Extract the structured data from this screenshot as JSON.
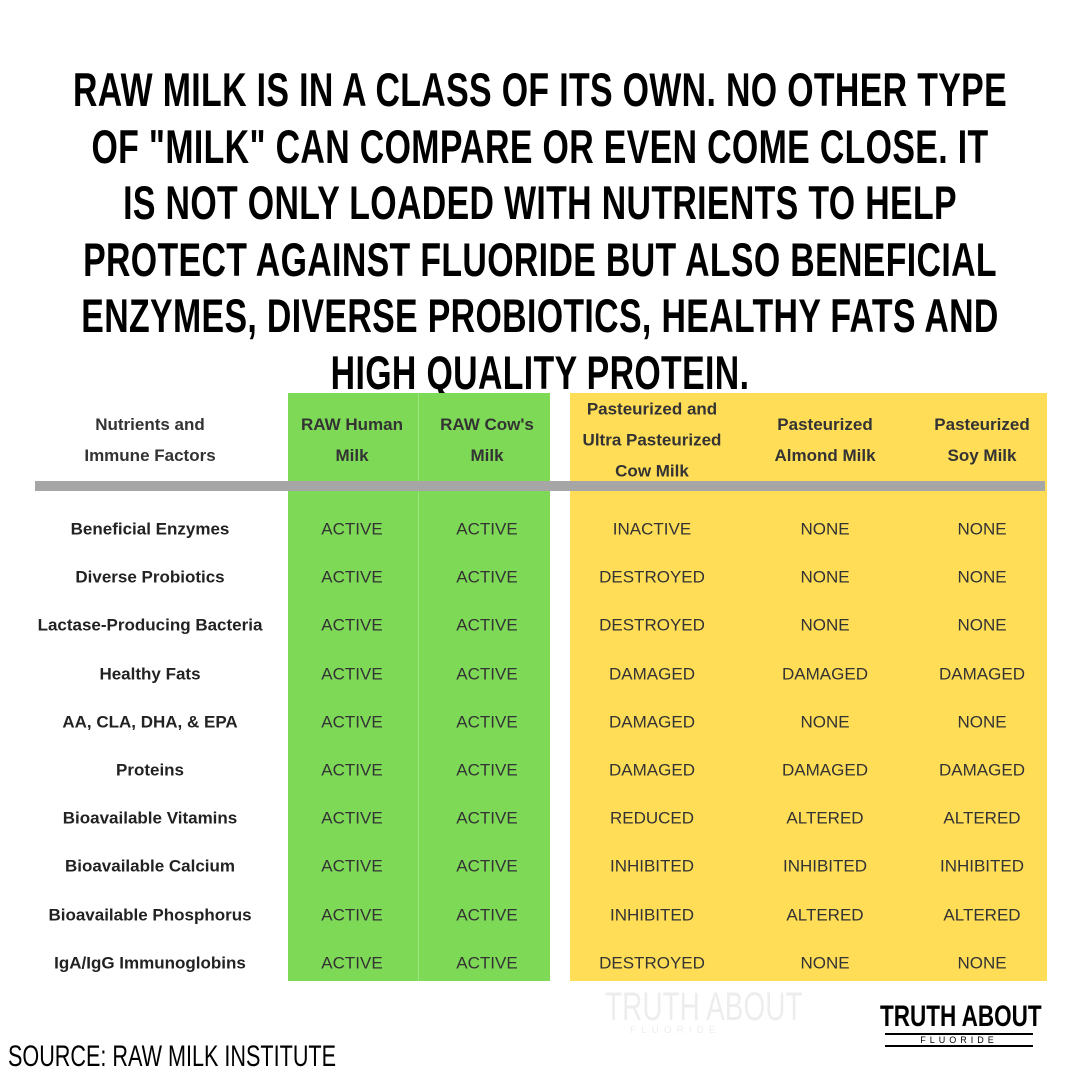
{
  "header": {
    "title": "RAW MILK IS IN A CLASS OF ITS OWN. NO OTHER TYPE OF \"MILK\" CAN COMPARE OR EVEN COME CLOSE. IT IS NOT ONLY LOADED WITH NUTRIENTS TO HELP PROTECT AGAINST FLUORIDE BUT ALSO BENEFICIAL ENZYMES, DIVERSE PROBIOTICS, HEALTHY FATS AND HIGH QUALITY PROTEIN."
  },
  "table": {
    "columns": [
      "Nutrients and Immune Factors",
      "RAW Human Milk",
      "RAW Cow's Milk",
      "Pasteurized and Ultra Pasteurized Cow Milk",
      "Pasteurized Almond Milk",
      "Pasteurized Soy Milk"
    ],
    "rows": [
      [
        "Beneficial Enzymes",
        "ACTIVE",
        "ACTIVE",
        "INACTIVE",
        "NONE",
        "NONE"
      ],
      [
        "Diverse Probiotics",
        "ACTIVE",
        "ACTIVE",
        "DESTROYED",
        "NONE",
        "NONE"
      ],
      [
        "Lactase-Producing Bacteria",
        "ACTIVE",
        "ACTIVE",
        "DESTROYED",
        "NONE",
        "NONE"
      ],
      [
        "Healthy Fats",
        "ACTIVE",
        "ACTIVE",
        "DAMAGED",
        "DAMAGED",
        "DAMAGED"
      ],
      [
        "AA, CLA, DHA, & EPA",
        "ACTIVE",
        "ACTIVE",
        "DAMAGED",
        "NONE",
        "NONE"
      ],
      [
        "Proteins",
        "ACTIVE",
        "ACTIVE",
        "DAMAGED",
        "DAMAGED",
        "DAMAGED"
      ],
      [
        "Bioavailable Vitamins",
        "ACTIVE",
        "ACTIVE",
        "REDUCED",
        "ALTERED",
        "ALTERED"
      ],
      [
        "Bioavailable Calcium",
        "ACTIVE",
        "ACTIVE",
        "INHIBITED",
        "INHIBITED",
        "INHIBITED"
      ],
      [
        "Bioavailable Phosphorus",
        "ACTIVE",
        "ACTIVE",
        "INHIBITED",
        "ALTERED",
        "ALTERED"
      ],
      [
        "IgA/IgG Immunoglobins",
        "ACTIVE",
        "ACTIVE",
        "DESTROYED",
        "NONE",
        "NONE"
      ]
    ]
  },
  "footer": {
    "source": "SOURCE: RAW MILK INSTITUTE",
    "logo_top": "TRUTH ABOUT",
    "logo_bottom": "FLUORIDE"
  }
}
